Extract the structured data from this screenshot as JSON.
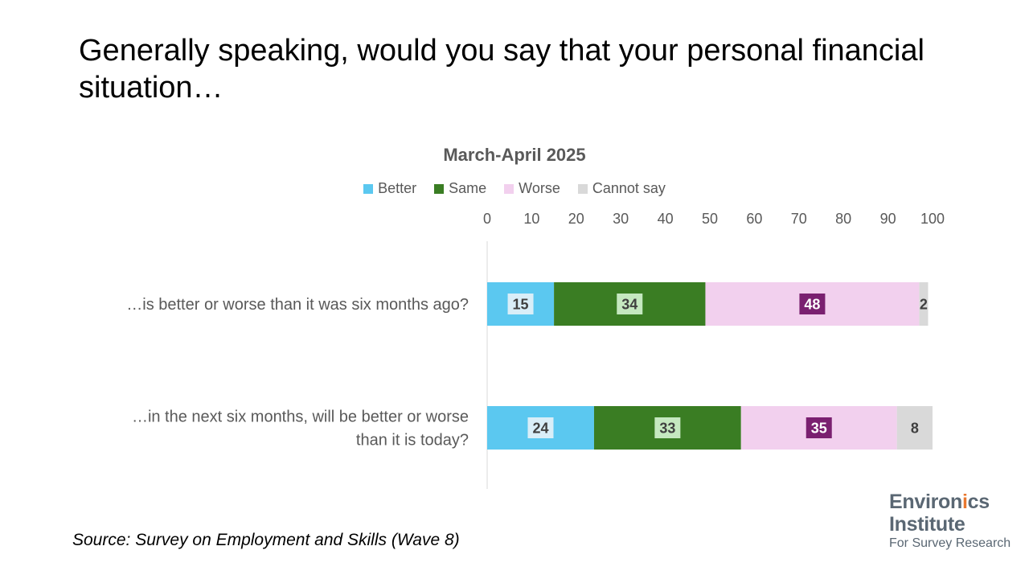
{
  "slide": {
    "title": "Generally speaking, would you say that your personal financial situation…",
    "source": "Source: Survey on Employment and Skills (Wave 8)"
  },
  "logo": {
    "line1_prefix": "Environ",
    "line1_accent": "i",
    "line1_suffix": "cs",
    "line2": "Institute",
    "line3": "For Survey Research"
  },
  "chart_data": {
    "type": "bar",
    "orientation": "horizontal",
    "stacked": true,
    "title": "March-April 2025",
    "categories": [
      [
        "…is better or worse than it was six months ago?"
      ],
      [
        "…in the next six months, will be better or worse",
        "than it is today?"
      ]
    ],
    "series": [
      {
        "name": "Better",
        "color": "#5bc8f0",
        "values": [
          15,
          24
        ]
      },
      {
        "name": "Same",
        "color": "#3a7d23",
        "values": [
          34,
          33
        ]
      },
      {
        "name": "Worse",
        "color": "#f2d0ee",
        "values": [
          48,
          35
        ]
      },
      {
        "name": "Cannot say",
        "color": "#d9d9d9",
        "values": [
          2,
          8
        ]
      }
    ],
    "xlim": [
      0,
      100
    ],
    "x_ticks": [
      0,
      10,
      20,
      30,
      40,
      50,
      60,
      70,
      80,
      90,
      100
    ],
    "x_axis_position": "top",
    "legend_position": "top",
    "grid": false,
    "data_label_styles": [
      {
        "box": "#d9eef8",
        "text": "#404040"
      },
      {
        "box": "#c5e8c0",
        "text": "#404040"
      },
      {
        "box": "#7a2070",
        "text": "#ffffff"
      },
      {
        "box": "none",
        "text": "#404040"
      }
    ]
  }
}
